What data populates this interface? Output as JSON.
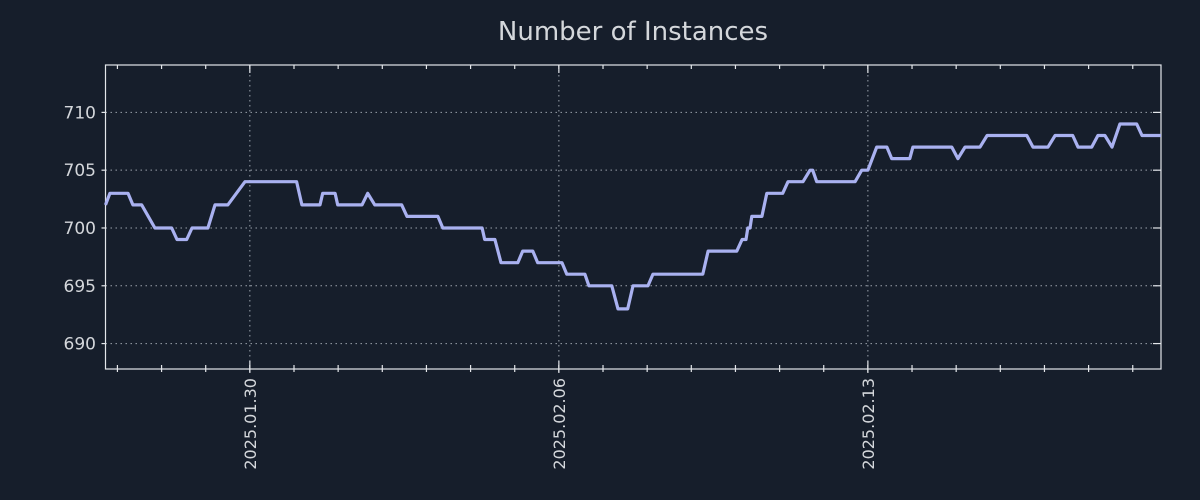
{
  "title": "Number of Instances",
  "colors": {
    "background": "#161e2b",
    "line": "#a9b1f0",
    "grid": "#9ba2ac",
    "axis": "#e3e6ea",
    "text": "#d4d7db"
  },
  "chart_data": {
    "type": "line",
    "title": "Number of Instances",
    "xlabel": "",
    "ylabel": "",
    "legend": "none",
    "grid": "dotted",
    "x_unit": "days relative to 2025-01-30",
    "x_range": [
      -3.27,
      20.64
    ],
    "y_range": [
      687.8,
      714.1
    ],
    "y_ticks": [
      690,
      695,
      700,
      705,
      710
    ],
    "x_major_ticks": [
      {
        "day": 0,
        "label": "2025.01.30"
      },
      {
        "day": 7,
        "label": "2025.02.06"
      },
      {
        "day": 14,
        "label": "2025.02.13"
      }
    ],
    "x_minor_tick_step": 1,
    "points": [
      [
        -3.27,
        702
      ],
      [
        -3.17,
        703
      ],
      [
        -2.76,
        703
      ],
      [
        -2.65,
        702
      ],
      [
        -2.45,
        702
      ],
      [
        -2.15,
        700
      ],
      [
        -1.77,
        700
      ],
      [
        -1.65,
        699
      ],
      [
        -1.43,
        699
      ],
      [
        -1.31,
        700
      ],
      [
        -0.95,
        700
      ],
      [
        -0.79,
        702
      ],
      [
        -0.5,
        702
      ],
      [
        -0.11,
        704
      ],
      [
        1.06,
        704
      ],
      [
        1.18,
        702
      ],
      [
        1.59,
        702
      ],
      [
        1.65,
        703
      ],
      [
        1.93,
        703
      ],
      [
        1.99,
        702
      ],
      [
        2.54,
        702
      ],
      [
        2.67,
        703
      ],
      [
        2.83,
        702
      ],
      [
        3.44,
        702
      ],
      [
        3.56,
        701
      ],
      [
        4.26,
        701
      ],
      [
        4.37,
        700
      ],
      [
        5.26,
        700
      ],
      [
        5.32,
        699
      ],
      [
        5.55,
        699
      ],
      [
        5.69,
        697
      ],
      [
        6.07,
        697
      ],
      [
        6.18,
        698
      ],
      [
        6.41,
        698
      ],
      [
        6.52,
        697
      ],
      [
        7.07,
        697
      ],
      [
        7.18,
        696
      ],
      [
        7.59,
        696
      ],
      [
        7.68,
        695
      ],
      [
        8.2,
        695
      ],
      [
        8.34,
        693
      ],
      [
        8.56,
        693
      ],
      [
        8.68,
        695
      ],
      [
        9.02,
        695
      ],
      [
        9.13,
        696
      ],
      [
        10.26,
        696
      ],
      [
        10.38,
        698
      ],
      [
        11.03,
        698
      ],
      [
        11.15,
        699
      ],
      [
        11.24,
        699
      ],
      [
        11.28,
        700
      ],
      [
        11.33,
        700
      ],
      [
        11.37,
        701
      ],
      [
        11.6,
        701
      ],
      [
        11.71,
        703
      ],
      [
        12.07,
        703
      ],
      [
        12.19,
        704
      ],
      [
        12.53,
        704
      ],
      [
        12.69,
        705
      ],
      [
        12.75,
        705
      ],
      [
        12.84,
        704
      ],
      [
        13.71,
        704
      ],
      [
        13.86,
        705
      ],
      [
        14.0,
        705
      ],
      [
        14.2,
        707
      ],
      [
        14.43,
        707
      ],
      [
        14.54,
        706
      ],
      [
        14.95,
        706
      ],
      [
        15.02,
        707
      ],
      [
        15.9,
        707
      ],
      [
        16.04,
        706
      ],
      [
        16.2,
        707
      ],
      [
        16.54,
        707
      ],
      [
        16.7,
        708
      ],
      [
        17.6,
        708
      ],
      [
        17.74,
        707
      ],
      [
        18.08,
        707
      ],
      [
        18.24,
        708
      ],
      [
        18.64,
        708
      ],
      [
        18.76,
        707
      ],
      [
        19.07,
        707
      ],
      [
        19.21,
        708
      ],
      [
        19.37,
        708
      ],
      [
        19.53,
        707
      ],
      [
        19.71,
        709
      ],
      [
        20.09,
        709
      ],
      [
        20.21,
        708
      ],
      [
        20.64,
        708
      ]
    ]
  }
}
